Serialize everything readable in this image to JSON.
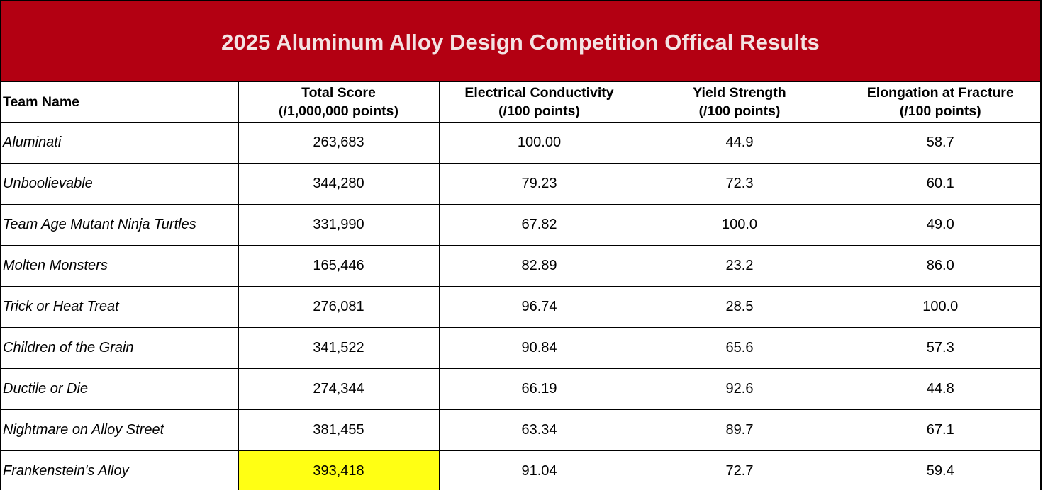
{
  "title": "2025 Aluminum Alloy Design Competition Offical Results",
  "colors": {
    "header_bg": "#b30012",
    "header_text": "#f3e3e3",
    "highlight": "#ffff14"
  },
  "columns": [
    {
      "line1": "Team Name",
      "line2": ""
    },
    {
      "line1": "Total Score",
      "line2": "(/1,000,000 points)"
    },
    {
      "line1": "Electrical Conductivity",
      "line2": "(/100 points)"
    },
    {
      "line1": "Yield Strength",
      "line2": "(/100 points)"
    },
    {
      "line1": "Elongation at Fracture",
      "line2": "(/100 points)"
    }
  ],
  "rows": [
    {
      "team": "Aluminati",
      "total": "263,683",
      "conductivity": "100.00",
      "yield": "44.9",
      "elongation": "58.7",
      "highlight_total": false
    },
    {
      "team": "Unboolievable",
      "total": "344,280",
      "conductivity": "79.23",
      "yield": "72.3",
      "elongation": "60.1",
      "highlight_total": false
    },
    {
      "team": "Team Age Mutant Ninja Turtles",
      "total": "331,990",
      "conductivity": "67.82",
      "yield": "100.0",
      "elongation": "49.0",
      "highlight_total": false
    },
    {
      "team": "Molten Monsters",
      "total": "165,446",
      "conductivity": "82.89",
      "yield": "23.2",
      "elongation": "86.0",
      "highlight_total": false
    },
    {
      "team": "Trick or Heat Treat",
      "total": "276,081",
      "conductivity": "96.74",
      "yield": "28.5",
      "elongation": "100.0",
      "highlight_total": false
    },
    {
      "team": "Children of the Grain",
      "total": "341,522",
      "conductivity": "90.84",
      "yield": "65.6",
      "elongation": "57.3",
      "highlight_total": false
    },
    {
      "team": "Ductile or Die",
      "total": "274,344",
      "conductivity": "66.19",
      "yield": "92.6",
      "elongation": "44.8",
      "highlight_total": false
    },
    {
      "team": "Nightmare on Alloy Street",
      "total": "381,455",
      "conductivity": "63.34",
      "yield": "89.7",
      "elongation": "67.1",
      "highlight_total": false
    },
    {
      "team": "Frankenstein's Alloy",
      "total": "393,418",
      "conductivity": "91.04",
      "yield": "72.7",
      "elongation": "59.4",
      "highlight_total": true
    }
  ]
}
